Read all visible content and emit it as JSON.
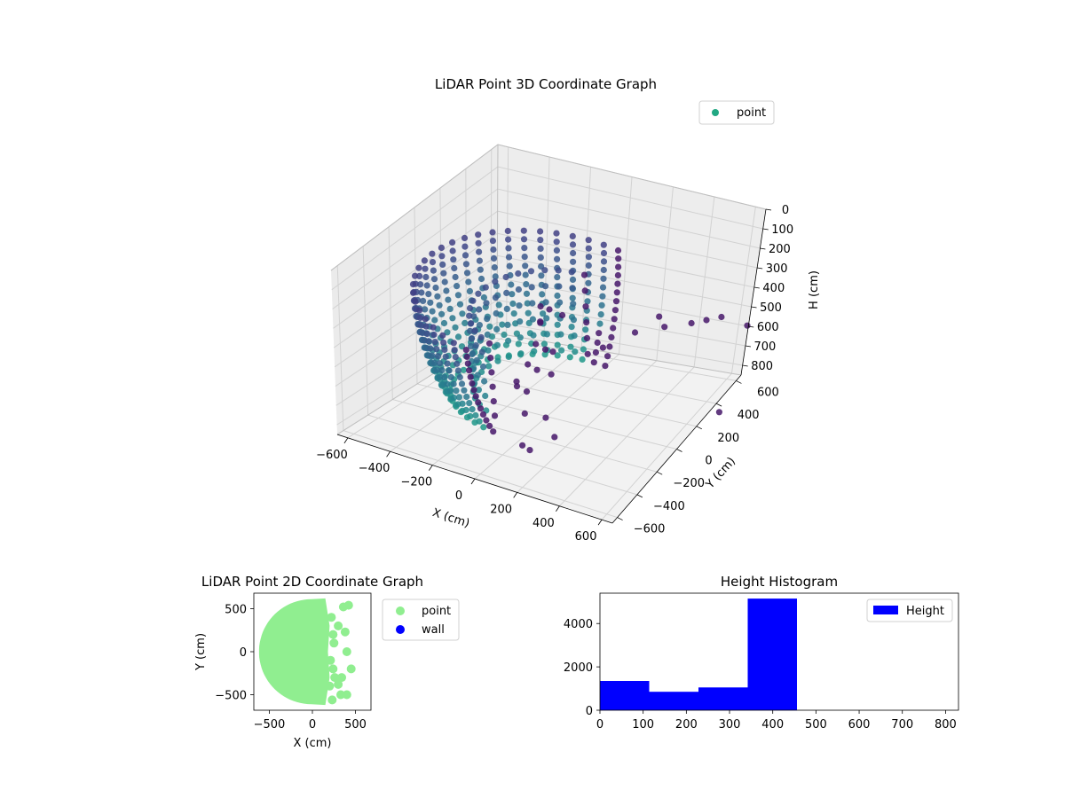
{
  "chart_data": [
    {
      "type": "scatter",
      "title": "LiDAR Point 3D Coordinate Graph",
      "projection": "3d",
      "xlabel": "X (cm)",
      "ylabel": "Y (cm)",
      "zlabel": "H (cm)",
      "xlim": [
        -650,
        650
      ],
      "ylim": [
        -650,
        650
      ],
      "zlim": [
        850,
        0
      ],
      "z_inverted": true,
      "xticks": [
        "−600",
        "−400",
        "−200",
        "0",
        "200",
        "400",
        "600"
      ],
      "yticks": [
        "−600",
        "−400",
        "−200",
        "0",
        "200",
        "400",
        "600"
      ],
      "zticks": [
        "0",
        "100",
        "200",
        "300",
        "400",
        "500",
        "600",
        "700",
        "800"
      ],
      "grid": true,
      "colormap": "viridis (by height)",
      "legend": {
        "placement": "top-right",
        "entries": [
          {
            "name": "point",
            "color": "#21a883"
          }
        ]
      },
      "description_shape": "half-dome of points for x < 0, radius ~600 cm, heights ~100–700 cm, with sparse scattered points toward positive x"
    },
    {
      "type": "scatter",
      "title": "LiDAR Point 2D Coordinate Graph",
      "xlabel": "X (cm)",
      "ylabel": "Y (cm)",
      "xlim": [
        -680,
        680
      ],
      "ylim": [
        -680,
        680
      ],
      "xticks": [
        "−500",
        "0",
        "500"
      ],
      "yticks": [
        "−500",
        "0",
        "500"
      ],
      "series": [
        {
          "name": "point",
          "color": "#90ee90",
          "region": "filled half-disc x in [-600, 200], y in [-620, 620]",
          "outliers": [
            [
              420,
              540
            ],
            [
              360,
              520
            ],
            [
              300,
              300
            ],
            [
              380,
              230
            ],
            [
              400,
              0
            ],
            [
              450,
              -200
            ],
            [
              340,
              -300
            ],
            [
              300,
              -380
            ],
            [
              330,
              -500
            ],
            [
              400,
              -500
            ]
          ]
        },
        {
          "name": "wall",
          "color": "#0000ff",
          "points": []
        }
      ],
      "legend": {
        "placement": "outside-right"
      }
    },
    {
      "type": "bar",
      "title": "Height Histogram",
      "xlabel": "",
      "ylabel": "",
      "xlim": [
        0,
        830
      ],
      "ylim": [
        0,
        5400
      ],
      "xticks": [
        "0",
        "100",
        "200",
        "300",
        "400",
        "500",
        "600",
        "700",
        "800"
      ],
      "yticks": [
        "0",
        "2000",
        "4000"
      ],
      "bins": [
        {
          "start": 0,
          "end": 114,
          "count": 1350
        },
        {
          "start": 114,
          "end": 228,
          "count": 850
        },
        {
          "start": 228,
          "end": 342,
          "count": 1050
        },
        {
          "start": 342,
          "end": 456,
          "count": 5150
        },
        {
          "start": 456,
          "end": 570,
          "count": 0
        },
        {
          "start": 570,
          "end": 684,
          "count": 0
        },
        {
          "start": 684,
          "end": 800,
          "count": 0
        }
      ],
      "series": [
        {
          "name": "Height",
          "color": "#0000ff"
        }
      ],
      "legend": {
        "placement": "top-right"
      }
    }
  ]
}
